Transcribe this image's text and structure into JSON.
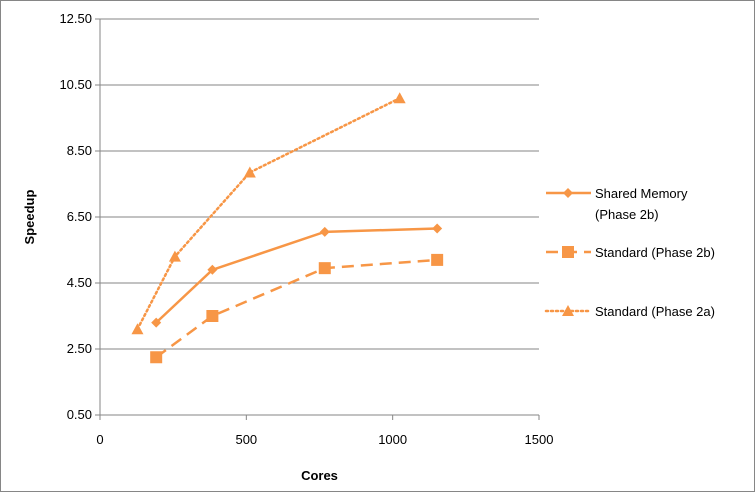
{
  "chart_data": {
    "type": "line",
    "xlabel": "Cores",
    "ylabel": "Speedup",
    "xlim": [
      0,
      1500
    ],
    "ylim": [
      0.5,
      12.5
    ],
    "xticks": [
      0,
      500,
      1000,
      1500
    ],
    "xtick_labels": [
      "0",
      "500",
      "1000",
      "1500"
    ],
    "yticks": [
      0.5,
      2.5,
      4.5,
      6.5,
      8.5,
      10.5,
      12.5
    ],
    "ytick_labels": [
      "0.50",
      "2.50",
      "4.50",
      "6.50",
      "8.50",
      "10.50",
      "12.50"
    ],
    "grid": "horizontal",
    "legend_position": "right",
    "series": [
      {
        "name": "Shared Memory (Phase 2b)",
        "legend_lines": [
          "Shared Memory",
          "(Phase 2b)"
        ],
        "x": [
          192,
          384,
          768,
          1152
        ],
        "y": [
          3.3,
          4.9,
          6.05,
          6.15
        ],
        "marker": "diamond",
        "line": "solid",
        "color": "#F79646"
      },
      {
        "name": "Standard (Phase 2b)",
        "legend_lines": [
          "Standard (Phase 2b)"
        ],
        "x": [
          192,
          384,
          768,
          1152
        ],
        "y": [
          2.25,
          3.5,
          4.95,
          5.2
        ],
        "marker": "square",
        "line": "dashed",
        "color": "#F79646"
      },
      {
        "name": "Standard (Phase 2a)",
        "legend_lines": [
          "Standard (Phase 2a)"
        ],
        "x": [
          128,
          256,
          512,
          1024
        ],
        "y": [
          3.1,
          5.3,
          7.85,
          10.1
        ],
        "marker": "triangle",
        "line": "dotted",
        "color": "#F79646"
      }
    ]
  },
  "colors": {
    "series": "#F79646",
    "gridline": "#868686",
    "border": "#868686"
  }
}
